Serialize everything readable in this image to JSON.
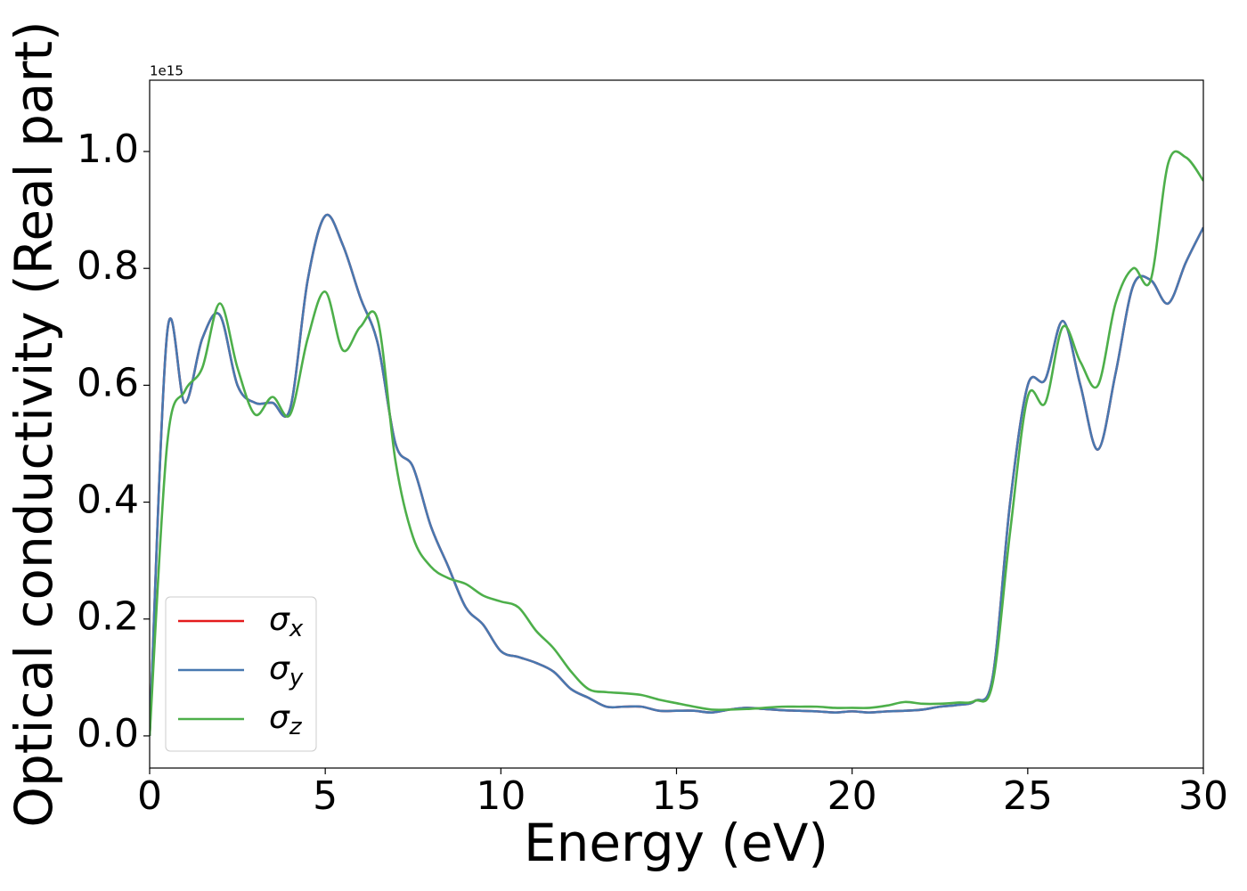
{
  "chart_data": {
    "type": "line",
    "x_label": "Energy (eV)",
    "y_label": "Optical conductivity (Real part)",
    "y_offset_label": "1e15",
    "x": [
      0,
      0.5,
      1,
      1.5,
      2,
      2.5,
      3,
      3.5,
      4,
      4.5,
      5,
      5.5,
      6,
      6.5,
      7,
      7.5,
      8,
      8.5,
      9,
      9.5,
      10,
      10.5,
      11,
      11.5,
      12,
      12.5,
      13,
      13.5,
      14,
      14.5,
      15,
      15.5,
      16,
      16.5,
      17,
      17.5,
      18,
      18.5,
      19,
      19.5,
      20,
      20.5,
      21,
      21.5,
      22,
      22.5,
      23,
      23.5,
      24,
      24.5,
      25,
      25.5,
      26,
      26.5,
      27,
      27.5,
      28,
      28.5,
      29,
      29.5,
      30
    ],
    "series": [
      {
        "name": "σx",
        "color": "#e41a1c",
        "values": [
          0.0,
          0.69,
          0.57,
          0.68,
          0.72,
          0.6,
          0.57,
          0.57,
          0.56,
          0.78,
          0.89,
          0.84,
          0.75,
          0.67,
          0.5,
          0.46,
          0.36,
          0.29,
          0.22,
          0.19,
          0.145,
          0.135,
          0.125,
          0.11,
          0.08,
          0.065,
          0.05,
          0.05,
          0.05,
          0.043,
          0.043,
          0.043,
          0.04,
          0.045,
          0.048,
          0.046,
          0.044,
          0.043,
          0.042,
          0.04,
          0.042,
          0.04,
          0.042,
          0.043,
          0.045,
          0.05,
          0.053,
          0.06,
          0.1,
          0.4,
          0.6,
          0.61,
          0.71,
          0.6,
          0.49,
          0.62,
          0.77,
          0.78,
          0.74,
          0.81,
          0.87
        ]
      },
      {
        "name": "σy",
        "color": "#4878b0",
        "values": [
          0.0,
          0.69,
          0.57,
          0.68,
          0.72,
          0.6,
          0.57,
          0.57,
          0.56,
          0.78,
          0.89,
          0.84,
          0.75,
          0.67,
          0.5,
          0.46,
          0.36,
          0.29,
          0.22,
          0.19,
          0.145,
          0.135,
          0.125,
          0.11,
          0.08,
          0.065,
          0.05,
          0.05,
          0.05,
          0.043,
          0.043,
          0.043,
          0.04,
          0.045,
          0.048,
          0.046,
          0.044,
          0.043,
          0.042,
          0.04,
          0.042,
          0.04,
          0.042,
          0.043,
          0.045,
          0.05,
          0.053,
          0.06,
          0.1,
          0.4,
          0.6,
          0.61,
          0.71,
          0.6,
          0.49,
          0.62,
          0.77,
          0.78,
          0.74,
          0.81,
          0.87
        ]
      },
      {
        "name": "σz",
        "color": "#4daf4a",
        "values": [
          0.0,
          0.5,
          0.59,
          0.63,
          0.74,
          0.63,
          0.55,
          0.58,
          0.55,
          0.68,
          0.76,
          0.66,
          0.7,
          0.71,
          0.47,
          0.34,
          0.29,
          0.27,
          0.26,
          0.24,
          0.23,
          0.22,
          0.18,
          0.15,
          0.11,
          0.08,
          0.075,
          0.073,
          0.07,
          0.062,
          0.056,
          0.05,
          0.045,
          0.045,
          0.046,
          0.048,
          0.05,
          0.05,
          0.05,
          0.048,
          0.048,
          0.048,
          0.052,
          0.058,
          0.055,
          0.055,
          0.057,
          0.06,
          0.09,
          0.35,
          0.58,
          0.57,
          0.7,
          0.64,
          0.6,
          0.74,
          0.8,
          0.78,
          0.98,
          0.99,
          0.95
        ]
      }
    ],
    "xlim": [
      0,
      30
    ],
    "xticks": [
      0,
      5,
      10,
      15,
      20,
      25,
      30
    ],
    "ylim": [
      -0.055,
      1.122
    ],
    "yticks": [
      {
        "value": 0,
        "label": "0.0"
      },
      0.2,
      0.4,
      0.6,
      0.8,
      {
        "value": 1,
        "label": "1.0"
      }
    ],
    "legend": "lower left"
  }
}
